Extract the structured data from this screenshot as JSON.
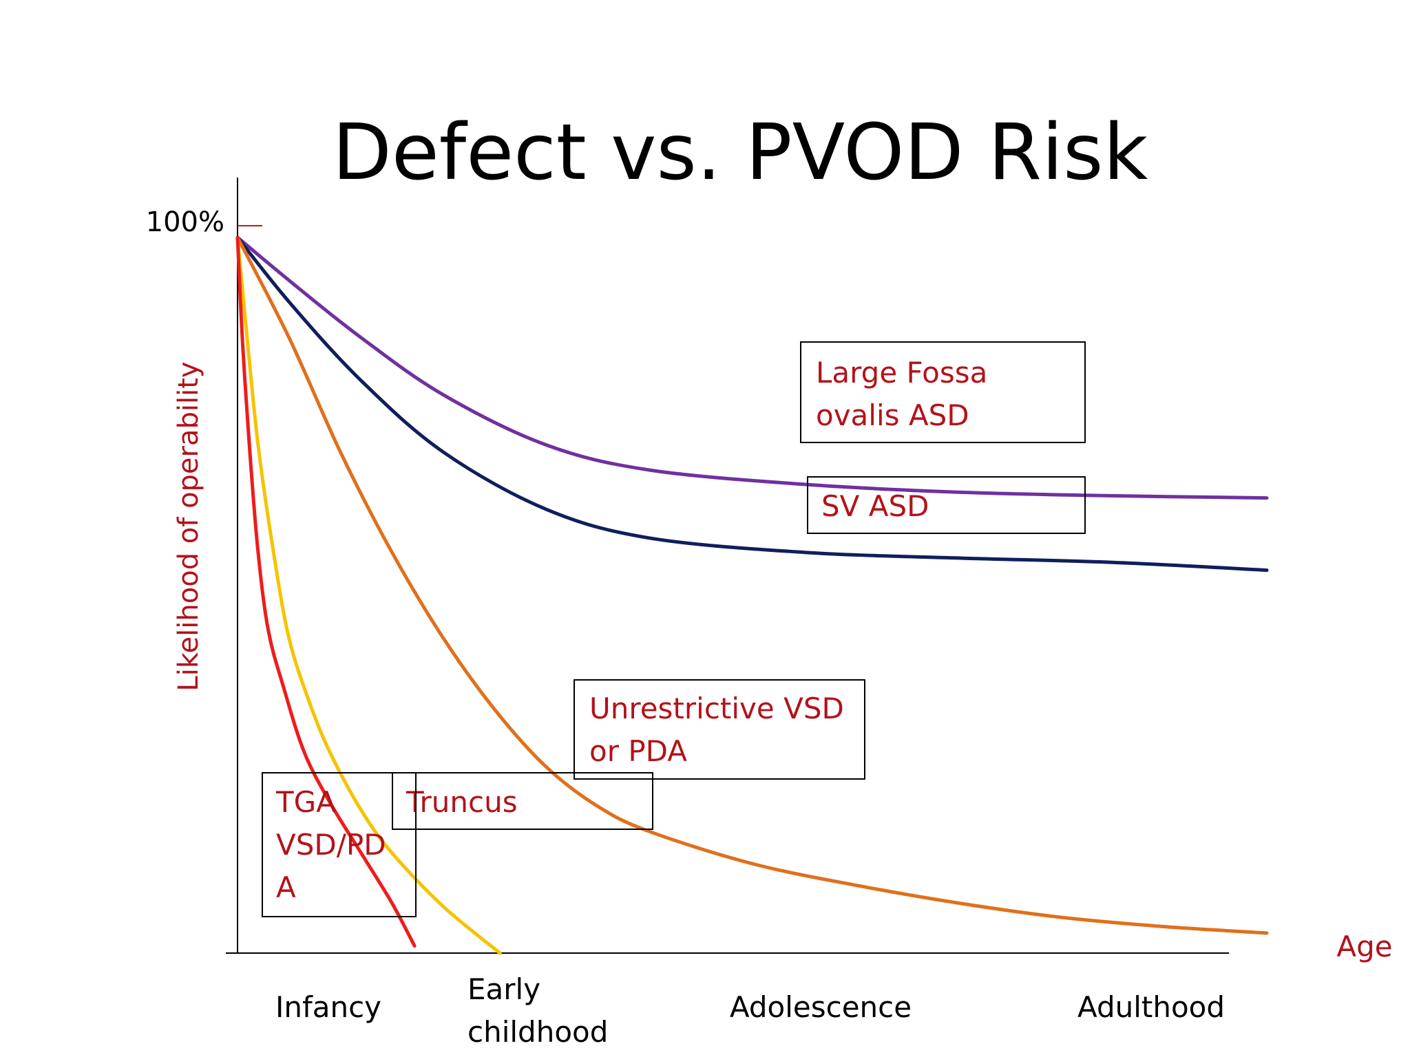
{
  "colors": {
    "accent_red_text": "#b3121a",
    "purple": "#7030a0",
    "navy": "#0f1f5c",
    "orange": "#e0701c",
    "yellow": "#f6c300",
    "red": "#ee1c1c",
    "black": "#000000"
  },
  "chart_data": {
    "type": "line",
    "title": "Defect vs. PVOD Risk",
    "xlabel": "Age",
    "ylabel": "Likelihood of operability",
    "y_tick_top": "100%",
    "x_categories": [
      "Infancy",
      "Early childhood",
      "Adolescence",
      "Adulthood"
    ],
    "x_range": [
      0,
      1
    ],
    "ylim": [
      0,
      100
    ],
    "grid": false,
    "series": [
      {
        "name": "Large Fossa ovalis ASD",
        "color_key": "purple",
        "points": [
          [
            0,
            100
          ],
          [
            0.05,
            94
          ],
          [
            0.12,
            86
          ],
          [
            0.2,
            78
          ],
          [
            0.3,
            71
          ],
          [
            0.4,
            67.5
          ],
          [
            0.55,
            65.5
          ],
          [
            0.7,
            64.4
          ],
          [
            0.85,
            63.9
          ],
          [
            1.0,
            63.6
          ]
        ]
      },
      {
        "name": "SV ASD",
        "color_key": "navy",
        "points": [
          [
            0,
            100
          ],
          [
            0.05,
            91
          ],
          [
            0.12,
            80
          ],
          [
            0.2,
            70
          ],
          [
            0.3,
            62
          ],
          [
            0.4,
            58
          ],
          [
            0.55,
            56
          ],
          [
            0.7,
            55.2
          ],
          [
            0.85,
            54.6
          ],
          [
            1.0,
            53.5
          ]
        ]
      },
      {
        "name": "Unrestrictive VSD or PDA",
        "color_key": "orange",
        "points": [
          [
            0,
            100
          ],
          [
            0.05,
            86
          ],
          [
            0.1,
            70
          ],
          [
            0.15,
            56
          ],
          [
            0.2,
            44
          ],
          [
            0.25,
            34
          ],
          [
            0.3,
            26
          ],
          [
            0.35,
            20.5
          ],
          [
            0.4,
            17
          ],
          [
            0.5,
            12.5
          ],
          [
            0.6,
            9.5
          ],
          [
            0.7,
            7
          ],
          [
            0.8,
            5
          ],
          [
            0.9,
            3.7
          ],
          [
            1.0,
            2.8
          ]
        ]
      },
      {
        "name": "Truncus",
        "color_key": "yellow",
        "points": [
          [
            0,
            100
          ],
          [
            0.01,
            85
          ],
          [
            0.02,
            71
          ],
          [
            0.035,
            56
          ],
          [
            0.05,
            44
          ],
          [
            0.07,
            35
          ],
          [
            0.09,
            28
          ],
          [
            0.12,
            20
          ],
          [
            0.15,
            14
          ],
          [
            0.2,
            6.5
          ],
          [
            0.255,
            0
          ]
        ]
      },
      {
        "name": "TGA VSD/PDA",
        "color_key": "red",
        "points": [
          [
            0,
            100
          ],
          [
            0.005,
            85
          ],
          [
            0.012,
            70
          ],
          [
            0.02,
            56
          ],
          [
            0.03,
            45
          ],
          [
            0.045,
            37
          ],
          [
            0.065,
            28
          ],
          [
            0.09,
            21
          ],
          [
            0.12,
            14
          ],
          [
            0.15,
            7
          ],
          [
            0.172,
            1
          ]
        ]
      }
    ],
    "annotations": [
      {
        "lines": [
          "Large Fossa",
          "ovalis ASD"
        ]
      },
      {
        "lines": [
          "SV ASD"
        ]
      },
      {
        "lines": [
          "Unrestrictive VSD",
          "or PDA"
        ]
      },
      {
        "lines": [
          "Truncus"
        ]
      },
      {
        "lines": [
          "TGA",
          "VSD/PD",
          "A"
        ]
      }
    ]
  }
}
